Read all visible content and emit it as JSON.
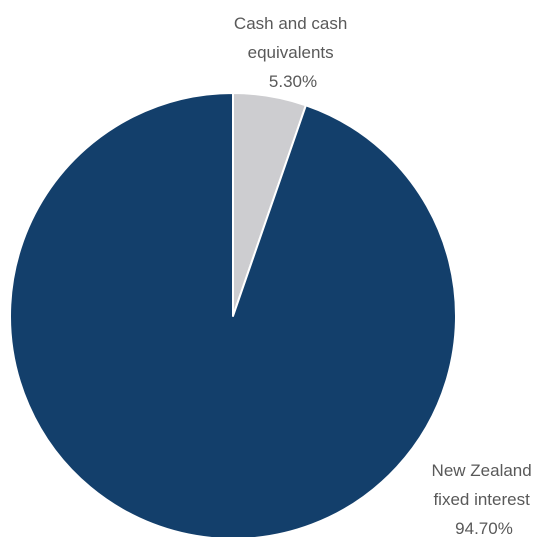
{
  "chart_data": {
    "type": "pie",
    "start_angle": "12 o'clock, clockwise",
    "slices": [
      {
        "label_lines": [
          "Cash and cash",
          "equivalents"
        ],
        "value_label": "5.30%",
        "value": 5.3,
        "color": "#cdcdd0"
      },
      {
        "label_lines": [
          "New Zealand",
          "fixed interest"
        ],
        "value_label": "94.70%",
        "value": 94.7,
        "color": "#133f6b"
      }
    ],
    "slice_border_color": "#ffffff",
    "legend": "none"
  }
}
